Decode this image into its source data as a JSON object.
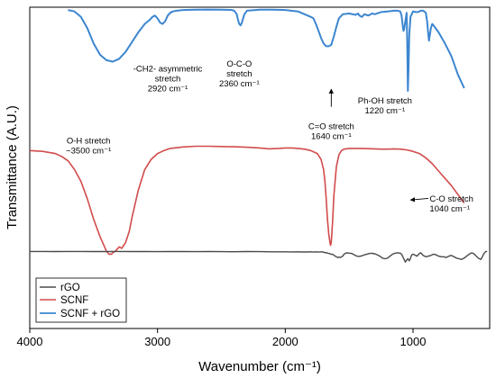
{
  "chart_data": {
    "type": "line",
    "xlabel": "Wavenumber (cm⁻¹)",
    "ylabel": "Transmittance (A.U.)",
    "xlim": [
      4000,
      400
    ],
    "x_ticks": [
      4000,
      3000,
      2000,
      1000
    ],
    "y_ticks": "none",
    "grid": false,
    "legend_position": "bottom-left",
    "colors": {
      "rGO": "#4a4a4a",
      "SCNF": "#d24b4b",
      "SCNF + rGO": "#3c86d0"
    },
    "series": [
      {
        "name": "SCNF + rGO",
        "color": "#3c86d0",
        "stroke_width": 2,
        "x": [
          3700,
          3650,
          3600,
          3550,
          3500,
          3450,
          3400,
          3350,
          3300,
          3250,
          3200,
          3150,
          3100,
          3060,
          3040,
          3020,
          3000,
          2980,
          2960,
          2940,
          2920,
          2900,
          2880,
          2850,
          2800,
          2700,
          2600,
          2500,
          2420,
          2400,
          2380,
          2370,
          2360,
          2350,
          2340,
          2320,
          2300,
          2200,
          2100,
          2000,
          1900,
          1850,
          1800,
          1780,
          1760,
          1740,
          1720,
          1700,
          1680,
          1660,
          1640,
          1620,
          1600,
          1580,
          1550,
          1500,
          1450,
          1430,
          1420,
          1400,
          1380,
          1350,
          1320,
          1300,
          1250,
          1200,
          1150,
          1120,
          1100,
          1090,
          1080,
          1075,
          1070,
          1060,
          1050,
          1045,
          1040,
          1035,
          1030,
          1020,
          1000,
          980,
          960,
          940,
          920,
          900,
          890,
          880,
          875,
          870,
          860,
          850,
          840,
          800,
          750,
          700,
          650,
          600
        ],
        "y": [
          0.98,
          0.97,
          0.93,
          0.85,
          0.74,
          0.66,
          0.62,
          0.61,
          0.63,
          0.68,
          0.75,
          0.82,
          0.88,
          0.91,
          0.93,
          0.94,
          0.92,
          0.89,
          0.88,
          0.9,
          0.94,
          0.96,
          0.97,
          0.975,
          0.98,
          0.982,
          0.983,
          0.982,
          0.98,
          0.975,
          0.95,
          0.91,
          0.88,
          0.87,
          0.89,
          0.95,
          0.975,
          0.982,
          0.982,
          0.98,
          0.97,
          0.95,
          0.93,
          0.92,
          0.88,
          0.83,
          0.78,
          0.74,
          0.72,
          0.72,
          0.73,
          0.79,
          0.86,
          0.92,
          0.95,
          0.955,
          0.945,
          0.955,
          0.94,
          0.93,
          0.95,
          0.94,
          0.955,
          0.95,
          0.965,
          0.97,
          0.975,
          0.975,
          0.97,
          0.94,
          0.86,
          0.83,
          0.84,
          0.9,
          0.96,
          0.74,
          0.4,
          0.56,
          0.8,
          0.93,
          0.97,
          0.965,
          0.965,
          0.975,
          0.975,
          0.96,
          0.9,
          0.8,
          0.76,
          0.79,
          0.85,
          0.88,
          0.87,
          0.82,
          0.74,
          0.65,
          0.52,
          0.42
        ]
      },
      {
        "name": "SCNF",
        "color": "#d24b4b",
        "stroke_width": 1.6,
        "x": [
          4000,
          3900,
          3800,
          3750,
          3700,
          3650,
          3600,
          3550,
          3500,
          3450,
          3420,
          3400,
          3380,
          3360,
          3350,
          3330,
          3300,
          3280,
          3250,
          3220,
          3200,
          3150,
          3100,
          3050,
          3000,
          2950,
          2900,
          2800,
          2700,
          2600,
          2500,
          2400,
          2300,
          2200,
          2150,
          2120,
          2100,
          2050,
          2000,
          1950,
          1900,
          1850,
          1800,
          1750,
          1720,
          1700,
          1690,
          1680,
          1670,
          1660,
          1650,
          1645,
          1640,
          1630,
          1620,
          1600,
          1580,
          1560,
          1540,
          1500,
          1450,
          1400,
          1350,
          1300,
          1250,
          1200,
          1150,
          1100,
          1050,
          1000,
          950,
          900,
          850,
          800,
          750,
          700,
          650,
          600
        ],
        "y": [
          0.93,
          0.925,
          0.91,
          0.89,
          0.86,
          0.8,
          0.72,
          0.6,
          0.46,
          0.34,
          0.28,
          0.24,
          0.22,
          0.22,
          0.23,
          0.24,
          0.27,
          0.26,
          0.3,
          0.38,
          0.47,
          0.66,
          0.8,
          0.87,
          0.91,
          0.93,
          0.945,
          0.955,
          0.96,
          0.96,
          0.958,
          0.956,
          0.953,
          0.948,
          0.944,
          0.942,
          0.943,
          0.945,
          0.948,
          0.948,
          0.945,
          0.94,
          0.93,
          0.91,
          0.87,
          0.8,
          0.72,
          0.6,
          0.46,
          0.36,
          0.3,
          0.28,
          0.3,
          0.44,
          0.62,
          0.82,
          0.9,
          0.93,
          0.94,
          0.945,
          0.945,
          0.945,
          0.943,
          0.942,
          0.94,
          0.94,
          0.942,
          0.94,
          0.935,
          0.925,
          0.91,
          0.88,
          0.84,
          0.79,
          0.74,
          0.69,
          0.63,
          0.57
        ]
      },
      {
        "name": "rGO",
        "color": "#4a4a4a",
        "stroke_width": 1.4,
        "x": [
          4000,
          3900,
          3800,
          3700,
          3600,
          3500,
          3400,
          3300,
          3200,
          3100,
          3000,
          2900,
          2800,
          2700,
          2600,
          2500,
          2400,
          2300,
          2200,
          2100,
          2000,
          1950,
          1900,
          1850,
          1800,
          1780,
          1760,
          1740,
          1720,
          1700,
          1690,
          1680,
          1670,
          1660,
          1650,
          1640,
          1630,
          1620,
          1610,
          1600,
          1590,
          1580,
          1570,
          1560,
          1550,
          1540,
          1520,
          1500,
          1480,
          1460,
          1440,
          1420,
          1400,
          1380,
          1360,
          1340,
          1320,
          1300,
          1280,
          1260,
          1240,
          1220,
          1200,
          1180,
          1160,
          1140,
          1120,
          1100,
          1090,
          1080,
          1070,
          1060,
          1050,
          1040,
          1030,
          1020,
          1010,
          1000,
          990,
          980,
          970,
          960,
          950,
          940,
          930,
          920,
          910,
          900,
          880,
          860,
          840,
          820,
          800,
          780,
          760,
          740,
          720,
          700,
          680,
          660,
          640,
          620,
          600,
          580,
          560,
          540,
          520,
          500,
          490,
          480,
          470,
          460,
          450,
          440,
          430,
          420
        ],
        "y": [
          0.9,
          0.9,
          0.898,
          0.9,
          0.9,
          0.898,
          0.898,
          0.9,
          0.898,
          0.898,
          0.897,
          0.898,
          0.899,
          0.897,
          0.898,
          0.897,
          0.896,
          0.898,
          0.897,
          0.895,
          0.895,
          0.893,
          0.895,
          0.892,
          0.895,
          0.89,
          0.895,
          0.89,
          0.894,
          0.89,
          0.88,
          0.885,
          0.875,
          0.87,
          0.868,
          0.855,
          0.86,
          0.845,
          0.83,
          0.82,
          0.81,
          0.815,
          0.81,
          0.82,
          0.83,
          0.86,
          0.88,
          0.875,
          0.87,
          0.85,
          0.83,
          0.825,
          0.835,
          0.85,
          0.86,
          0.87,
          0.872,
          0.865,
          0.85,
          0.83,
          0.8,
          0.79,
          0.8,
          0.83,
          0.86,
          0.875,
          0.88,
          0.875,
          0.86,
          0.82,
          0.78,
          0.74,
          0.77,
          0.79,
          0.76,
          0.8,
          0.85,
          0.86,
          0.85,
          0.84,
          0.83,
          0.85,
          0.87,
          0.88,
          0.86,
          0.84,
          0.83,
          0.82,
          0.83,
          0.84,
          0.86,
          0.85,
          0.83,
          0.82,
          0.82,
          0.81,
          0.83,
          0.84,
          0.82,
          0.8,
          0.79,
          0.78,
          0.8,
          0.83,
          0.86,
          0.88,
          0.86,
          0.82,
          0.8,
          0.79,
          0.78,
          0.81,
          0.85,
          0.88,
          0.9,
          0.9
        ]
      }
    ],
    "annotations": [
      {
        "lines": [
          "O-H stretch",
          "~3500 cm⁻¹"
        ],
        "x": 3540,
        "y": 0.575,
        "anchor": "middle"
      },
      {
        "lines": [
          "-CH2- asymmetric",
          "stretch",
          "2920 cm⁻¹"
        ],
        "x": 2920,
        "y": 0.8,
        "anchor": "middle"
      },
      {
        "lines": [
          "O-C-O",
          "stretch",
          "2360 cm⁻¹"
        ],
        "x": 2360,
        "y": 0.815,
        "anchor": "middle"
      },
      {
        "lines": [
          "C=O stretch",
          "1640 cm⁻¹"
        ],
        "x": 1640,
        "y": 0.62,
        "anchor": "middle"
      },
      {
        "lines": [
          "C-O stretch",
          "1040 cm⁻¹"
        ],
        "x": 870,
        "y": 0.395,
        "anchor": "start"
      },
      {
        "lines": [
          "Ph-OH stretch",
          "1220 cm⁻¹"
        ],
        "x": 1220,
        "y": 0.7,
        "anchor": "middle"
      }
    ],
    "arrows": [
      {
        "from": [
          1640,
          0.69
        ],
        "to": [
          1640,
          0.745
        ]
      },
      {
        "from": [
          880,
          0.405
        ],
        "to": [
          1020,
          0.4
        ]
      }
    ],
    "legend": [
      "rGO",
      "SCNF",
      "SCNF + rGO"
    ]
  }
}
